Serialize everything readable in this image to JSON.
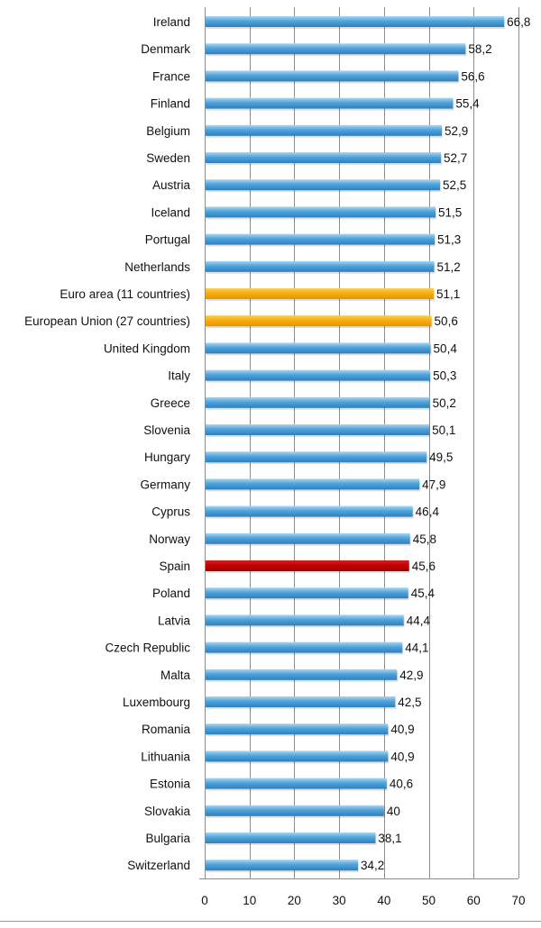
{
  "chart_data": {
    "type": "bar",
    "orientation": "horizontal",
    "categories": [
      "Ireland",
      "Denmark",
      "France",
      "Finland",
      "Belgium",
      "Sweden",
      "Austria",
      "Iceland",
      "Portugal",
      "Netherlands",
      "Euro area (11 countries)",
      "European Union (27 countries)",
      "United Kingdom",
      "Italy",
      "Greece",
      "Slovenia",
      "Hungary",
      "Germany",
      "Cyprus",
      "Norway",
      "Spain",
      "Poland",
      "Latvia",
      "Czech Republic",
      "Malta",
      "Luxembourg",
      "Romania",
      "Lithuania",
      "Estonia",
      "Slovakia",
      "Bulgaria",
      "Switzerland"
    ],
    "values": [
      66.8,
      58.2,
      56.6,
      55.4,
      52.9,
      52.7,
      52.5,
      51.5,
      51.3,
      51.2,
      51.1,
      50.6,
      50.4,
      50.3,
      50.2,
      50.1,
      49.5,
      47.9,
      46.4,
      45.8,
      45.6,
      45.4,
      44.4,
      44.1,
      42.9,
      42.5,
      40.9,
      40.9,
      40.6,
      40,
      38.1,
      34.2
    ],
    "value_labels": [
      "66,8",
      "58,2",
      "56,6",
      "55,4",
      "52,9",
      "52,7",
      "52,5",
      "51,5",
      "51,3",
      "51,2",
      "51,1",
      "50,6",
      "50,4",
      "50,3",
      "50,2",
      "50,1",
      "49,5",
      "47,9",
      "46,4",
      "45,8",
      "45,6",
      "45,4",
      "44,4",
      "44,1",
      "42,9",
      "42,5",
      "40,9",
      "40,9",
      "40,6",
      "40",
      "38,1",
      "34,2"
    ],
    "highlights": {
      "Euro area (11 countries)": "#f5a800",
      "European Union (27 countries)": "#f5a800",
      "Spain": "#c00000"
    },
    "default_color": "#4a9fd6",
    "xlim": [
      0,
      70
    ],
    "xticks": [
      0,
      10,
      20,
      30,
      40,
      50,
      60,
      70
    ],
    "grid": true,
    "title": "",
    "xlabel": "",
    "ylabel": ""
  }
}
